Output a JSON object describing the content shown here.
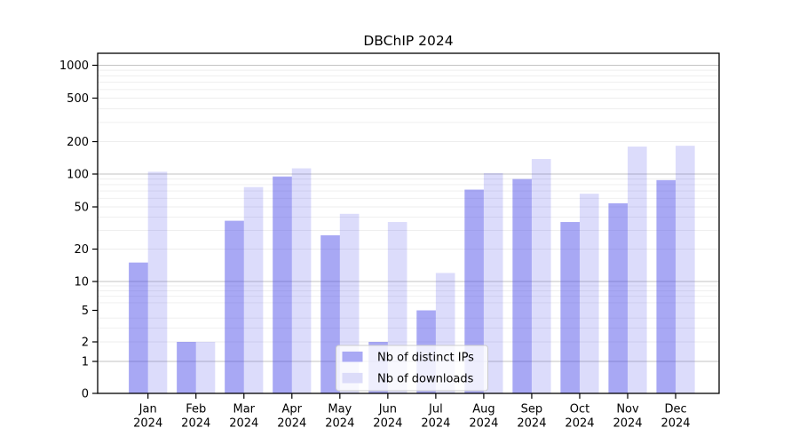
{
  "chart_data": {
    "type": "bar",
    "title": "DBChIP 2024",
    "categories": [
      "Jan",
      "Feb",
      "Mar",
      "Apr",
      "May",
      "Jun",
      "Jul",
      "Aug",
      "Sep",
      "Oct",
      "Nov",
      "Dec"
    ],
    "year_label": "2024",
    "series": [
      {
        "name": "Nb of distinct IPs",
        "color": "#4646e8",
        "fill_opacity": 0.47,
        "swatch_color": "#a9a9f4",
        "values": [
          15,
          2,
          37,
          95,
          27,
          2,
          5,
          72,
          90,
          36,
          54,
          88
        ]
      },
      {
        "name": "Nb of downloads",
        "color": "#4646e8",
        "fill_opacity": 0.19,
        "swatch_color": "#dcdcf9",
        "values": [
          105,
          2,
          76,
          113,
          43,
          36,
          12,
          102,
          138,
          66,
          180,
          183
        ]
      }
    ],
    "yscale": "log-like (0 baseline, labeled ticks 0,1,2,5,10,20,50,100,200,500,1000)",
    "ylabel": "",
    "xlabel": "",
    "y_ticks": [
      0,
      1,
      2,
      5,
      10,
      20,
      50,
      100,
      200,
      500,
      1000
    ],
    "y_major_gridlines": [
      1,
      10,
      100,
      1000
    ],
    "y_minor_gridlines": [
      2,
      3,
      4,
      6,
      7,
      8,
      9,
      20,
      30,
      40,
      50,
      60,
      70,
      80,
      90,
      200,
      300,
      400,
      500,
      600,
      700,
      800,
      900
    ],
    "grid": true,
    "legend_position": "lower center"
  },
  "colors": {
    "major_gridline": "#c3c3c3",
    "minor_gridline": "#ededed",
    "axis": "#000000",
    "legend_border": "#cccccc"
  }
}
